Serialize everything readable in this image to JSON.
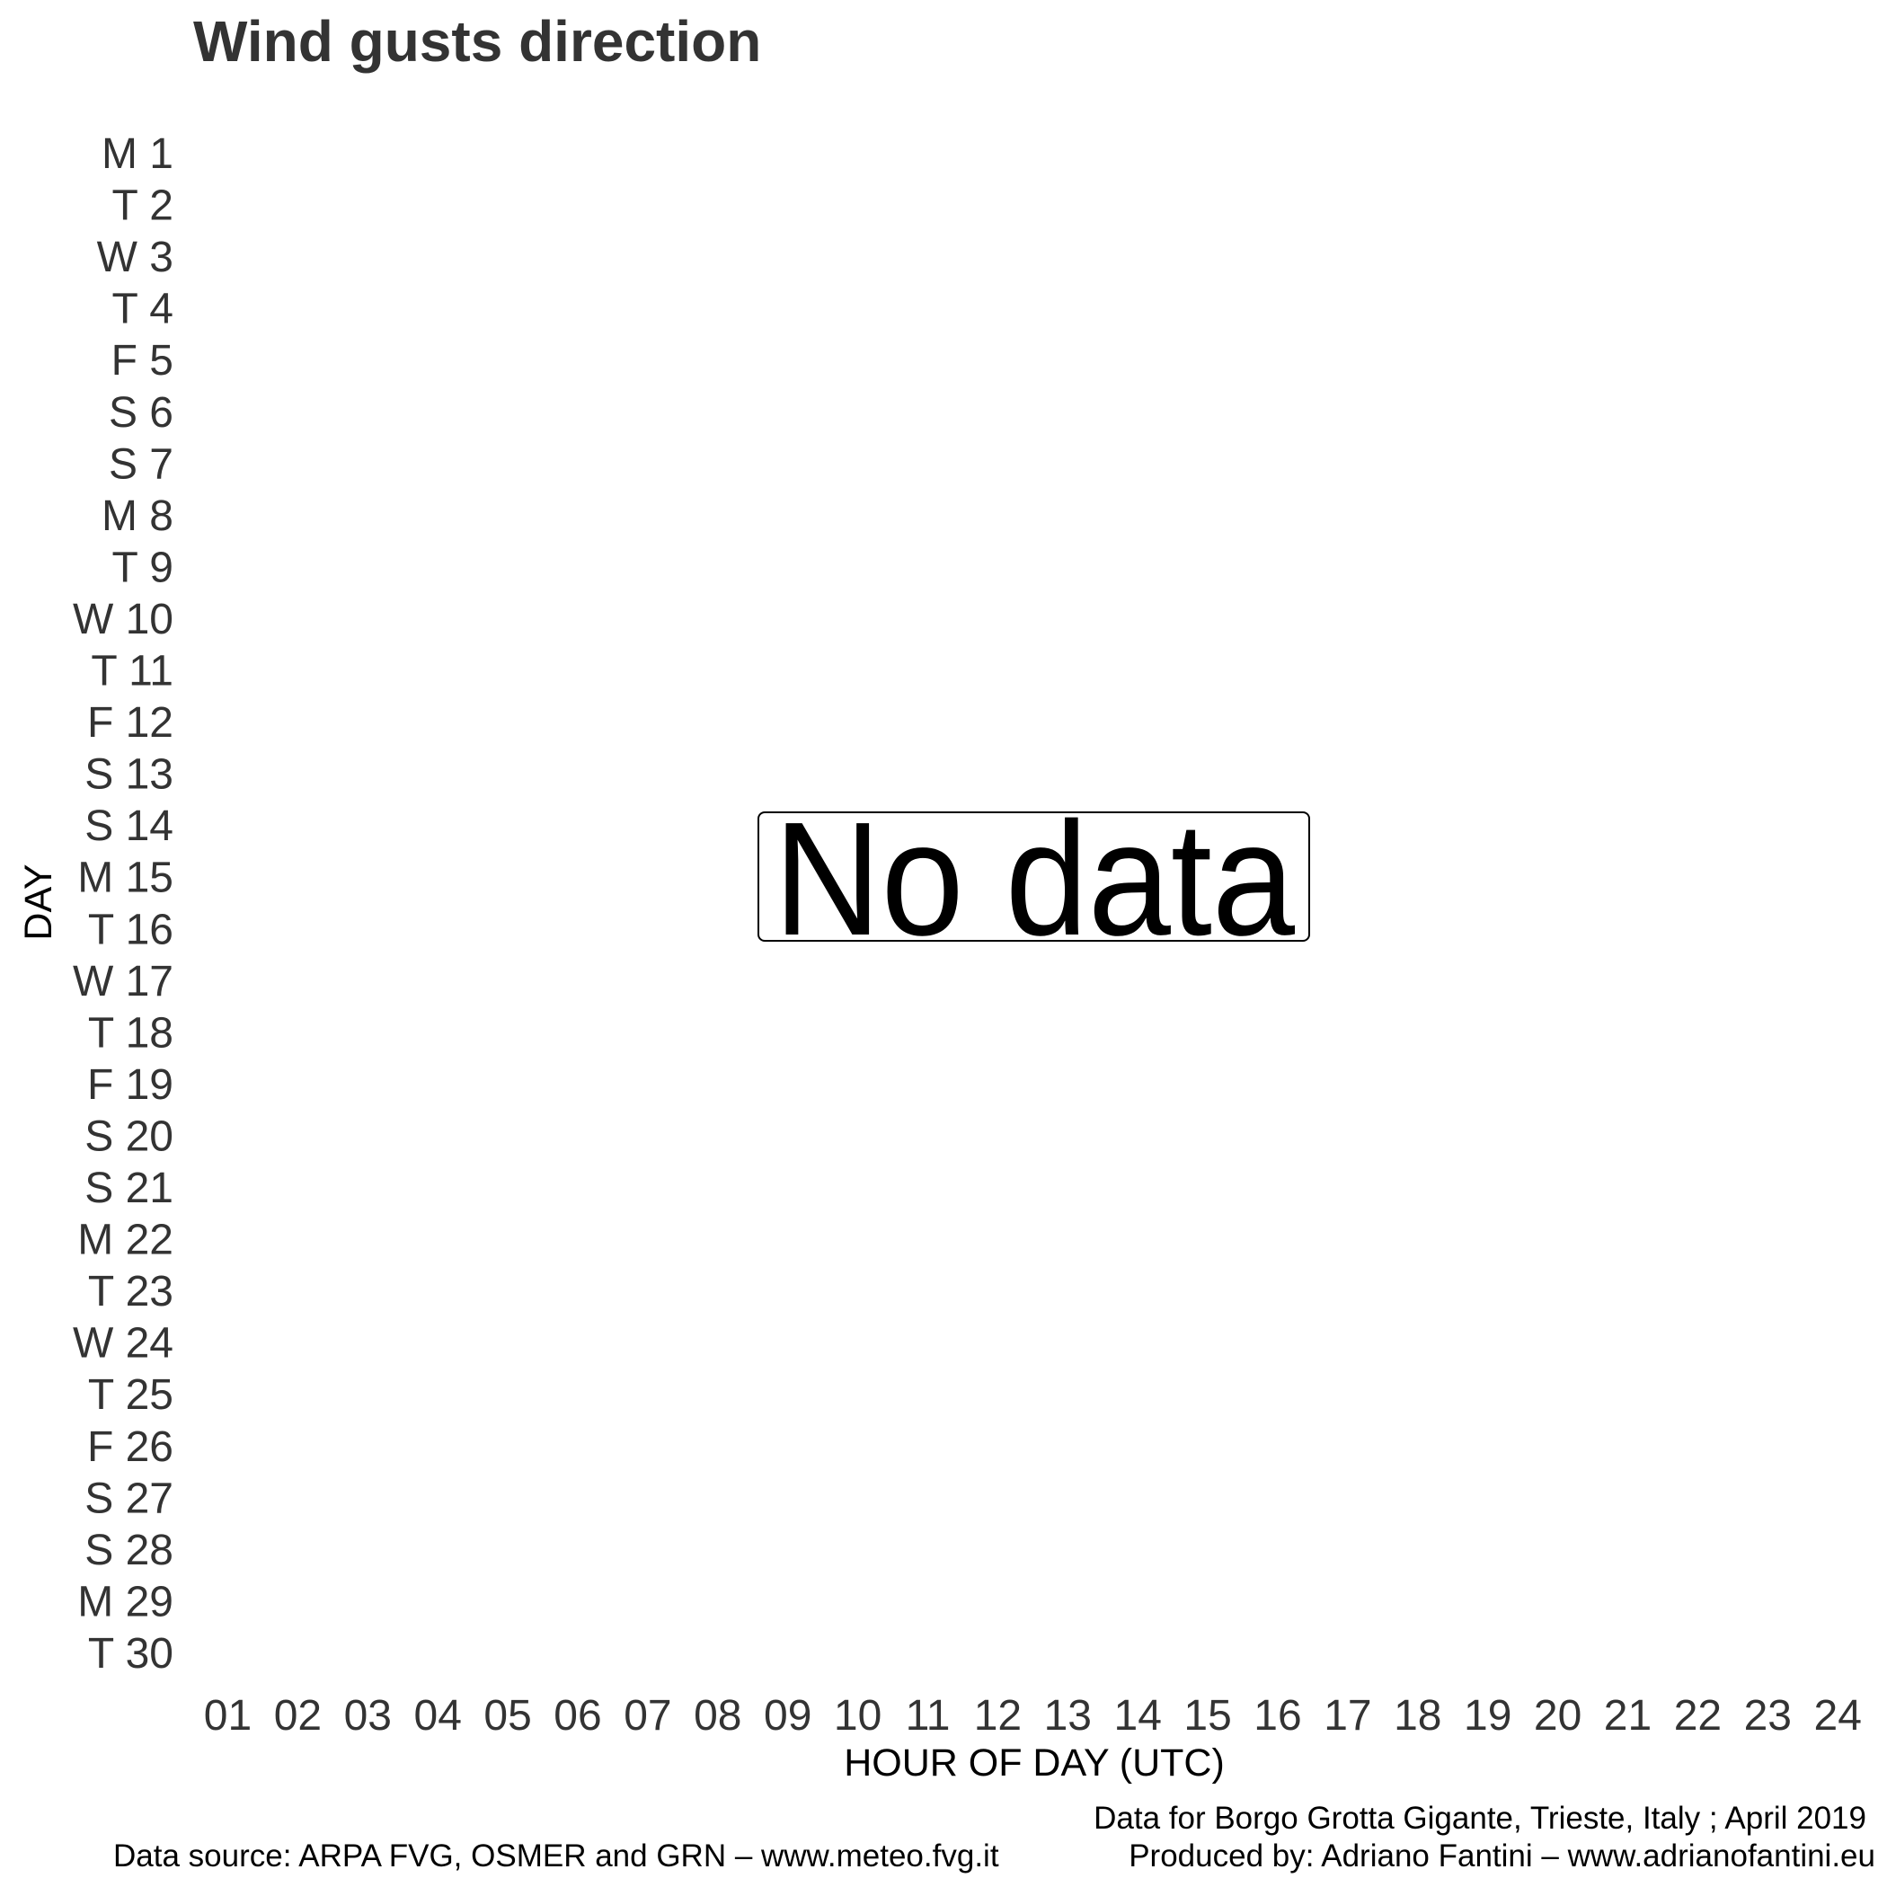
{
  "chart_data": {
    "type": "heatmap",
    "title": "Wind gusts direction",
    "xlabel": "HOUR OF DAY (UTC)",
    "ylabel": "DAY",
    "x_categories": [
      "01",
      "02",
      "03",
      "04",
      "05",
      "06",
      "07",
      "08",
      "09",
      "10",
      "11",
      "12",
      "13",
      "14",
      "15",
      "16",
      "17",
      "18",
      "19",
      "20",
      "21",
      "22",
      "23",
      "24"
    ],
    "y_categories": [
      "M 1",
      "T 2",
      "W 3",
      "T 4",
      "F 5",
      "S 6",
      "S 7",
      "M 8",
      "T 9",
      "W 10",
      "T 11",
      "F 12",
      "S 13",
      "S 14",
      "M 15",
      "T 16",
      "W 17",
      "T 18",
      "F 19",
      "S 20",
      "S 21",
      "M 22",
      "T 23",
      "W 24",
      "T 25",
      "F 26",
      "S 27",
      "S 28",
      "M 29",
      "T 30"
    ],
    "values": [],
    "annotation": "No data",
    "grid": false,
    "legend": "none"
  },
  "caption": {
    "data_for": "Data for  Borgo Grotta Gigante, Trieste, Italy ; April 2019",
    "source": "Data source: ARPA FVG, OSMER and GRN – www.meteo.fvg.it",
    "produced_by": "Produced by: Adriano Fantini  – www.adrianofantini.eu"
  },
  "colors": {
    "title": "#333333",
    "ticks": "#333333",
    "text": "#000000",
    "background": "#ffffff"
  }
}
